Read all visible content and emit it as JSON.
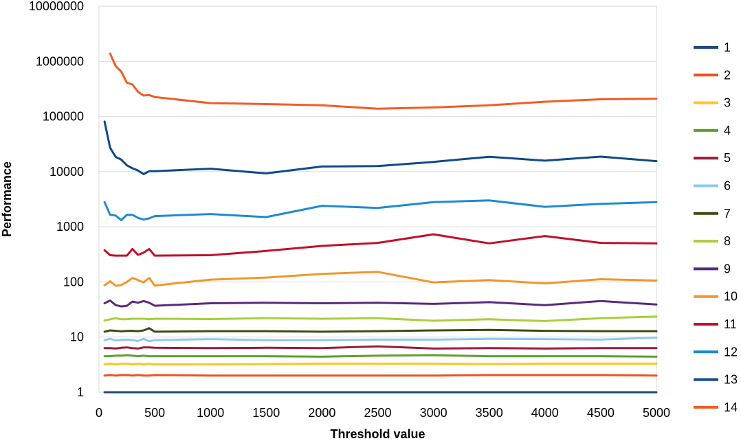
{
  "chart_data": {
    "type": "line",
    "title": "",
    "xlabel": "Threshold value",
    "ylabel": "Performance",
    "xlim": [
      0,
      5000
    ],
    "ylim": [
      1,
      10000000
    ],
    "yscale": "log",
    "grid": "horizontal",
    "legend_position": "right",
    "x_ticks": [
      "0",
      "500",
      "1000",
      "1500",
      "2000",
      "2500",
      "3000",
      "3500",
      "4000",
      "4500",
      "5000"
    ],
    "y_ticks": [
      "1",
      "10",
      "100",
      "1000",
      "10000",
      "100000",
      "1000000",
      "10000000"
    ],
    "x": [
      50,
      100,
      150,
      200,
      250,
      300,
      350,
      400,
      450,
      500,
      1000,
      1500,
      2000,
      2500,
      3000,
      3500,
      4000,
      4500,
      5000
    ],
    "series": [
      {
        "name": "1",
        "color": "#1F497D",
        "values": [
          1,
          1,
          1,
          1,
          1,
          1,
          1,
          1,
          1,
          1,
          1,
          1,
          1,
          1,
          1,
          1,
          1,
          1,
          1
        ]
      },
      {
        "name": "2",
        "color": "#F0501E",
        "values": [
          2,
          2.05,
          2,
          2.05,
          2.05,
          2,
          2.05,
          2,
          2,
          2.05,
          2,
          2,
          2,
          2,
          2,
          2.05,
          2.05,
          2.05,
          2
        ]
      },
      {
        "name": "3",
        "color": "#FFC520",
        "values": [
          3.2,
          3.3,
          3.2,
          3.3,
          3.3,
          3.2,
          3.3,
          3.2,
          3.3,
          3.2,
          3.2,
          3.25,
          3.3,
          3.3,
          3.3,
          3.25,
          3.3,
          3.3,
          3.3
        ]
      },
      {
        "name": "4",
        "color": "#5E9E2F",
        "values": [
          4.5,
          4.5,
          4.6,
          4.6,
          4.7,
          4.6,
          4.5,
          4.6,
          4.5,
          4.5,
          4.5,
          4.5,
          4.4,
          4.6,
          4.7,
          4.5,
          4.5,
          4.5,
          4.4
        ]
      },
      {
        "name": "5",
        "color": "#9C1A3A",
        "values": [
          6.3,
          6.3,
          6.2,
          6.4,
          6.5,
          6.3,
          6.2,
          6.5,
          6.5,
          6.4,
          6.3,
          6.4,
          6.3,
          6.8,
          6.2,
          6.3,
          6.2,
          6.3,
          6.3
        ]
      },
      {
        "name": "6",
        "color": "#8DC8F0",
        "values": [
          8.8,
          9.3,
          8.7,
          8.9,
          9.0,
          8.8,
          8.5,
          9.3,
          8.4,
          8.8,
          9.2,
          8.8,
          8.8,
          9.0,
          9.0,
          9.3,
          9.2,
          9.0,
          9.8
        ]
      },
      {
        "name": "7",
        "color": "#3B4A12",
        "values": [
          12.5,
          13.2,
          13.0,
          12.7,
          12.9,
          13.0,
          12.8,
          13.2,
          14.5,
          12.5,
          12.8,
          12.8,
          12.5,
          12.8,
          13.2,
          13.5,
          13.0,
          12.8,
          12.8
        ]
      },
      {
        "name": "8",
        "color": "#A9CE3A",
        "values": [
          20,
          21,
          22,
          21,
          21,
          21.5,
          21.5,
          21.5,
          21,
          21.5,
          21.2,
          22,
          21.5,
          22,
          19.8,
          21,
          19.5,
          22,
          23.5
        ]
      },
      {
        "name": "9",
        "color": "#5A2A7E",
        "values": [
          41,
          46,
          38,
          36,
          37,
          44,
          42,
          45,
          42,
          37,
          41,
          42,
          41,
          42,
          40,
          43,
          38,
          45,
          39
        ]
      },
      {
        "name": "10",
        "color": "#F3962A",
        "values": [
          87,
          103,
          85,
          88,
          100,
          118,
          108,
          98,
          118,
          86,
          110,
          120,
          140,
          152,
          98,
          108,
          94,
          112,
          106
        ]
      },
      {
        "name": "11",
        "color": "#C0102A",
        "values": [
          375,
          305,
          300,
          300,
          300,
          395,
          310,
          340,
          395,
          300,
          305,
          365,
          450,
          510,
          730,
          500,
          680,
          510,
          500
        ]
      },
      {
        "name": "12",
        "color": "#1E8AD2",
        "values": [
          2800,
          1650,
          1600,
          1320,
          1650,
          1650,
          1450,
          1350,
          1420,
          1560,
          1700,
          1500,
          2400,
          2200,
          2800,
          3000,
          2300,
          2600,
          2800
        ]
      },
      {
        "name": "13",
        "color": "#0F4A86",
        "values": [
          81000,
          27000,
          18500,
          16500,
          13000,
          11500,
          10500,
          9000,
          10200,
          10200,
          11300,
          9300,
          12400,
          12600,
          15000,
          18600,
          15800,
          18700,
          15500
        ]
      },
      {
        "name": "14",
        "color": "#F25C24",
        "values": [
          null,
          1380000,
          820000,
          650000,
          410000,
          380000,
          280000,
          240000,
          245000,
          225000,
          175000,
          168000,
          160000,
          138000,
          146000,
          160000,
          185000,
          205000,
          210000
        ]
      }
    ]
  }
}
